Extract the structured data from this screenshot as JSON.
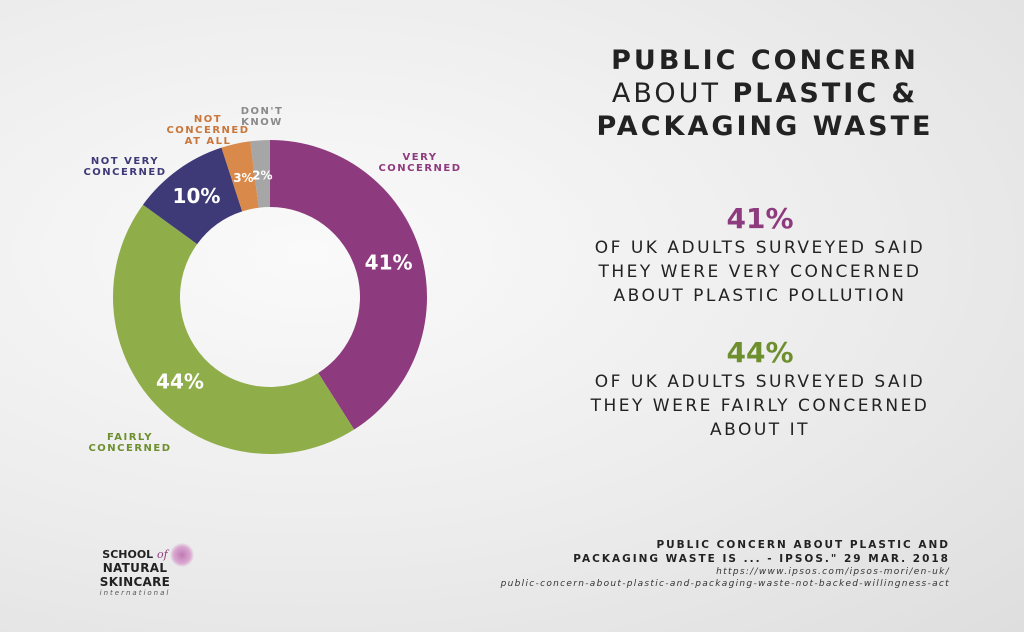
{
  "title": {
    "line1": "PUBLIC CONCERN",
    "line2_light": "ABOUT ",
    "line2_bold": "PLASTIC &",
    "line3": "PACKAGING WASTE"
  },
  "stats": [
    {
      "pct": "41%",
      "text": "OF UK ADULTS SURVEYED SAID THEY WERE VERY CONCERNED ABOUT PLASTIC POLLUTION",
      "color": "#8e3a7e"
    },
    {
      "pct": "44%",
      "text": "OF UK ADULTS SURVEYED SAID THEY WERE FAIRLY CONCERNED ABOUT IT",
      "color": "#6e8f2e"
    }
  ],
  "source": {
    "line1": "PUBLIC CONCERN ABOUT PLASTIC AND",
    "line2": "PACKAGING WASTE IS ... - IPSOS.\" 29 MAR. 2018",
    "line3": "https://www.ipsos.com/ipsos-mori/en-uk/",
    "line4": "public-concern-about-plastic-and-packaging-waste-not-backed-willingness-act"
  },
  "logo": {
    "line1": "SCHOOL",
    "line1_script": "of",
    "line2": "NATURAL SKINCARE",
    "line3": "international"
  },
  "chart_data": {
    "type": "pie",
    "donut": true,
    "title": "Public concern about plastic & packaging waste",
    "categories": [
      "VERY CONCERNED",
      "FAIRLY CONCERNED",
      "NOT VERY CONCERNED",
      "NOT CONCERNED AT ALL",
      "DON'T KNOW"
    ],
    "values": [
      41,
      44,
      10,
      3,
      2
    ],
    "value_labels": [
      "41%",
      "44%",
      "10%",
      "3%",
      "2%"
    ],
    "colors": [
      "#8e3a7e",
      "#8fae4a",
      "#3e3a78",
      "#d98a4a",
      "#a6a6a6"
    ],
    "label_colors": [
      "#8e3a7e",
      "#6e8f2e",
      "#3e3a78",
      "#c9763a",
      "#8a8a8a"
    ]
  }
}
